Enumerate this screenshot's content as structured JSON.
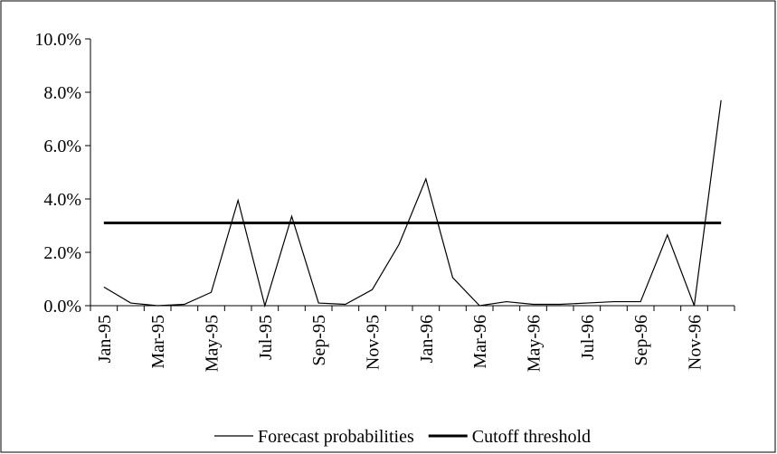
{
  "chart_data": {
    "type": "line",
    "categories": [
      "Jan-95",
      null,
      "Mar-95",
      null,
      "May-95",
      null,
      "Jul-95",
      null,
      "Sep-95",
      null,
      "Nov-95",
      null,
      "Jan-96",
      null,
      "Mar-96",
      null,
      "May-96",
      null,
      "Jul-96",
      null,
      "Sep-96",
      null,
      "Nov-96",
      null
    ],
    "series": [
      {
        "name": "Forecast probabilities",
        "color": "#000000",
        "width": 1.2,
        "values": [
          0.7,
          0.1,
          0.0,
          0.05,
          0.5,
          3.95,
          0.0,
          3.35,
          0.1,
          0.05,
          0.6,
          2.3,
          4.75,
          1.05,
          0.0,
          0.15,
          0.05,
          0.05,
          0.1,
          0.15,
          0.15,
          2.65,
          0.0,
          7.7
        ]
      },
      {
        "name": "Cutoff threshold",
        "color": "#000000",
        "width": 3,
        "values": [
          3.1,
          3.1,
          3.1,
          3.1,
          3.1,
          3.1,
          3.1,
          3.1,
          3.1,
          3.1,
          3.1,
          3.1,
          3.1,
          3.1,
          3.1,
          3.1,
          3.1,
          3.1,
          3.1,
          3.1,
          3.1,
          3.1,
          3.1,
          3.1
        ]
      }
    ],
    "ylim": [
      0,
      10
    ],
    "yticks": [
      {
        "value": 0,
        "label": "0.0%"
      },
      {
        "value": 2,
        "label": "2.0%"
      },
      {
        "value": 4,
        "label": "4.0%"
      },
      {
        "value": 6,
        "label": "6.0%"
      },
      {
        "value": 8,
        "label": "8.0%"
      },
      {
        "value": 10,
        "label": "10.0%"
      }
    ],
    "grid": false,
    "legend": "bottom"
  }
}
